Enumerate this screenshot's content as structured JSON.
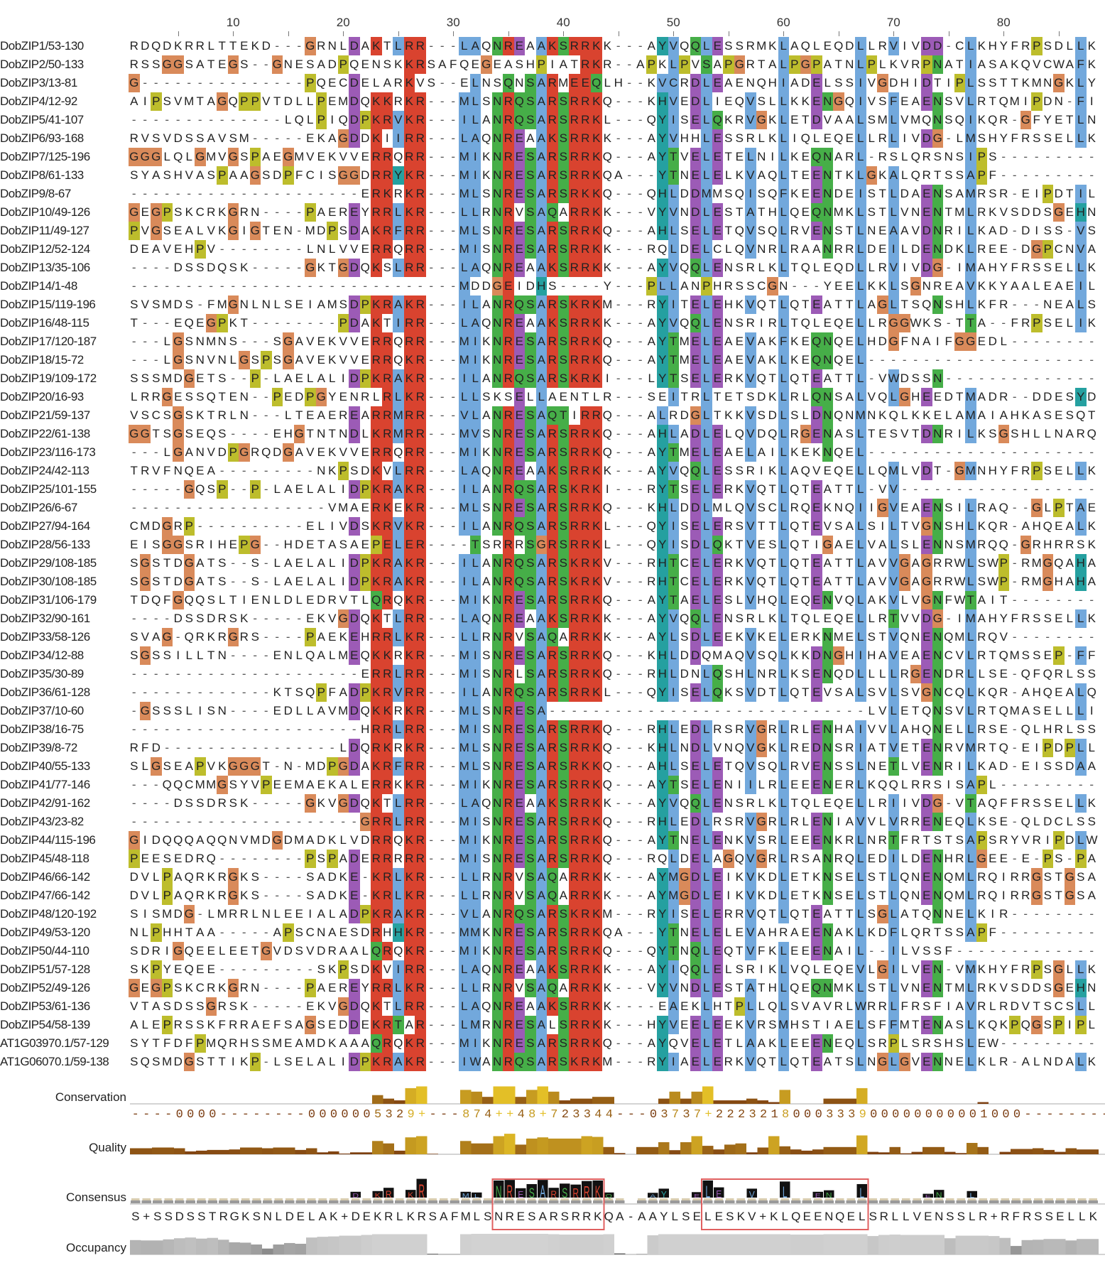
{
  "ruler": {
    "labels": [
      10,
      20,
      30,
      40,
      50,
      60,
      70,
      80
    ],
    "columns": 88
  },
  "colors": {
    "blue": "#72a8dc",
    "red": "#d9432f",
    "green": "#46ae48",
    "magenta": "#9c5bb6",
    "orange": "#d98a5a",
    "yellow": "#bdbd2c",
    "cyan": "#25a0a0",
    "pink": "#e08080",
    "low_score": "#7a3b10",
    "high_score": "#f2d22a",
    "highlight_box": "#e06060"
  },
  "alignment": {
    "sequences": [
      {
        "name": "DobZIP1/53-130",
        "residues": "RDQDKRRLTTEKD---GRNLDAKTLRR---LAQNREAAKSRRKK---AYVQQLESSRMKLAQLEQDLLRVIVDD-CLKHYFRPSDLLK"
      },
      {
        "name": "DobZIP2/50-133",
        "residues": "RSSGGSATEGS--GNESADPQENSKKRSAFQEGEASHPIATRKR--APKLPVSAPGRTALPGPATNLPLKVRPNATIASAKQVCWAFK"
      },
      {
        "name": "DobZIP3/13-81",
        "residues": "G---------------PQECDELARKVS--ELNSQNSARMEEQLH--KVCRDLEAENQHIADELSSIVGDHIDTIPLSSTTKMNGKLY"
      },
      {
        "name": "DobZIP4/12-92",
        "residues": "AIPSVMTAGQPPVTDLLPEMDQKKRKR---MLSNRQSARSRRKQ---KHVEDLIEQVSLLKKENGQIVSFEAENSVLRTQMIPDN-FI"
      },
      {
        "name": "DobZIP5/41-107",
        "residues": "--------------LQLPIQDPKRVKR---ILANRQSARSRRKL---QYISELQKRVGKLETDVAALSMLVMQNSQIKQR-GFYETLN"
      },
      {
        "name": "DobZIP6/93-168",
        "residues": "RVSVDSSAVSM-----EKAGDDKIIRR---LAQNREAAKSRRKK---AYVHHLESSRLKLIQLEQELLRLIVDG-LMSHYFRSSELLK"
      },
      {
        "name": "DobZIP7/125-196",
        "residues": "GGGLQLGMVGSPAEGMVEKVVERRQRR---MIKNRESARSRRKQ---AYTVELETELNILKEQNARL-RSLQRSNSIPS---------"
      },
      {
        "name": "DobZIP8/61-133",
        "residues": "SYASHVASPAAGSDPFCISGGDRRYKR---MIKNRESARSRRKQA---YTNELELKVAQLTEENTKLGKALQRTSSAPF---------"
      },
      {
        "name": "DobZIP9/8-67",
        "residues": "---------------------ERKRKR---MLSNRESARSRKKQ---QHLDDMMSQISQFKEENDEISTLDAENSAMRSR-EIPDTIL"
      },
      {
        "name": "DobZIP10/49-126",
        "residues": "GEGPSKCRKGRN----PAEREYRRLKR---LLRNRVSAQARRKK---VYVNDLESTATHLQEQNMKLSTLVNENTMLRKVSDDSGEHN"
      },
      {
        "name": "DobZIP11/49-127",
        "residues": "PVGSEALVKGIGTEN-MDPSDAKRFRR---MLSNRESARSRRKQ---AHLSELETQVSQLRVENSTLNEAAVDNRILKAD-DISS-VS"
      },
      {
        "name": "DobZIP12/52-124",
        "residues": "DEAVEHPV--------LNLVVERRQRR---MISNRESARSRRKK---RQLDELCLQVNRLRAANRRLDEILDENDKLREE-DGPCNVA"
      },
      {
        "name": "DobZIP13/35-106",
        "residues": "----DSSDQSK-----GKTGDQKSLRR---LAQNREAAKSRRKK---AYVQQLENSRLKLTQLEQDLLRVIVDG-IMAHYFRSSELLK"
      },
      {
        "name": "DobZIP14/1-48",
        "residues": "------------------------------MDDGEIDHS----Y---PLLANPHRSSCGN---YEELKKLSGNREAVKKYAALEAEIL"
      },
      {
        "name": "DobZIP15/119-196",
        "residues": "SVSMDS-FMGNLNLSEIAMSDPKRAKR---ILANRQSARSKRKM---RYITELEHKVQTLQTEATTLAGLTSQNSHLKFR---NEALS"
      },
      {
        "name": "DobZIP16/48-115",
        "residues": "T---EQEGPKT--------PDAKTIRR---LAQNREAAKSRRKK---AYVQQLENSRIRLTQLEQELLRGGWKS-TTA--FRPSELIK"
      },
      {
        "name": "DobZIP17/120-187",
        "residues": "---LGSNMNS---SGAVEKVVERRQRR---MIKNRESARSRRKQ---AYTMELEAEVAKFKEQNQELHDGFNAIFGGEDL--------"
      },
      {
        "name": "DobZIP18/15-72",
        "residues": "---LGSNVNLGSPSGAVEKVVERRQKR---MIKNRESARSRRKQ---AYTMELEAEVAKLKEQNQEL---------------------"
      },
      {
        "name": "DobZIP19/109-172",
        "residues": "SSSMDGETS--P-LAELALIDPKRAKR---ILANRQSARSKRKI---LYTSELERKVQTLQTEATTL-VWDSSN--------------"
      },
      {
        "name": "DobZIP20/16-93",
        "residues": "LRRGESSQTEN--PEDPGYENRLRLKR---LLSKSELLAENTLR---SEITRLTETSDKLRLQNSALVQLGHEEDTMADR--DDESYD"
      },
      {
        "name": "DobZIP21/59-137",
        "residues": "VSCSGSKTRLN---LTEAEREARRMRR---VLANRESAQTIRRQ---ALRDGLTKKVSDLSLDNQNMNKQLKKELAMAIAHKASESQT"
      },
      {
        "name": "DobZIP22/61-138",
        "residues": "GGTSGSEQS----EHGTNTNDLKRMRR---MVSNRESARSRRKQ---AHLADLELQVDQLRGENASLTESVTDNRILKSGSHLLNARQ"
      },
      {
        "name": "DobZIP23/116-173",
        "residues": "---LGANVDPGRQDGAVEKVVERRQRR---MIKNRESARSRRKQ---AYTMELEAELAILKEKNQEL---------------------"
      },
      {
        "name": "DobZIP24/42-113",
        "residues": "TRVFNQEA---------NKPSDKVLRR---LAQNREAAKSRRKK---AYVQQLESSRIKLAQVEQELLQMLVDT-GMNHYFRPSELLK"
      },
      {
        "name": "DobZIP25/101-155",
        "residues": "-----GQSP--P-LAELALIDPKRAKR---ILANRQSARSKRKI---RYTSELERKVQTLQTEATTL-VV------------------"
      },
      {
        "name": "DobZIP26/6-67",
        "residues": "------------------VMAERKEKR---MLSNRESARSRRKQ---KHLDDLMLQVSCLRQEKNQIIGVEAENSILRAQ--GLPTAE"
      },
      {
        "name": "DobZIP27/94-164",
        "residues": "CMDGRP----------ELIVDSKRVKR---ILANRQSARSRRKL---QYISELERSVTTLQTEVSALSILTVGNSHLKQR-AHQEALK"
      },
      {
        "name": "DobZIP28/56-133",
        "residues": "EISGGSRIHEPG--HDETASAEPELER----TSRRRSGRSRRKL---QYISDLQKTVESLQTIGAELVALSLENNSMRQQ-GRHRRSK"
      },
      {
        "name": "DobZIP29/108-185",
        "residues": "SGSTDGATS--S-LAELALIDPKRAKR---ILANRQSARSKRKV---RHTCELERKVQTLQTEATTLAVVGAGRRWLSWP-RMGQAHA"
      },
      {
        "name": "DobZIP30/108-185",
        "residues": "SGSTDGATS--S-LAELALIDPKRAKR---ILANRQSARSKRKV---RHTCELERKVQTLQTEATTLAVVGAGRRWLSWP-RMGHAHA"
      },
      {
        "name": "DobZIP31/106-179",
        "residues": "TDQFGQQSLTIENLDLEDRVTLQRQKR---MIKNRESARSRRKQ---AYTAELESLVHQLEQENVQLAKVLVGNFWTAIT--------"
      },
      {
        "name": "DobZIP32/90-161",
        "residues": "----DSSDRSK-----EKVGDQKTLRR---LAQNREAAKSRRKK---AYVQQLENSRLKLTQLEQELLRTVVDG-IMAHYFRSSELLK"
      },
      {
        "name": "DobZIP33/58-126",
        "residues": "SVAG-QRKRGRS----PAEKEHRRLKR---LLRNRVSAQARRKK---AYLSDLEEKVKELERKNMELSTVQNENQMLRQV--------"
      },
      {
        "name": "DobZIP34/12-88",
        "residues": "SGSSILLTN----ENLQALMEQKKRKR---MISNRESARSRRKQ---KHLDDQMAQVSQLKKDNGHIHAVEAENCVLRTQMSSEP-FF"
      },
      {
        "name": "DobZIP35/30-89",
        "residues": "---------------------ERRLRR---MISNRLSARSRRKQ---RHLDNLQSHLNRLKSENQDLLLLRGENDRLLSE-QFQRLSS"
      },
      {
        "name": "DobZIP36/61-128",
        "residues": "-------------KTSQPFADPKRVRR---ILANRQSARSRRKL---QYISELQKSVDTLQTEVSALSVLSVGNCQLKQR-AHQEALQ"
      },
      {
        "name": "DobZIP37/10-60",
        "residues": "-GSSSLISN----EDLLAVMDQKKRKR---MLSNRESA-----------------------------LVLETQNSVLRTQMASELLLI"
      },
      {
        "name": "DobZIP38/16-75",
        "residues": "---------------------HRRLRR---MISNRESARSRRKQ---RHLEDLRSRVGRLRLENHAIVVLAHQNELLRSE-QLHRLSS"
      },
      {
        "name": "DobZIP39/8-72",
        "residues": "RFD----------------LDQRKRKR---MLSNRESARSRRKQ---KHLNDLVNQVGKLREDNSRIATVETENRVMRTQ-EIPDPLL"
      },
      {
        "name": "DobZIP40/55-133",
        "residues": "SLGSEAPVKGGGT-N-MDPGDAKRFRR---MLSNRESARSRKKQ---AHLSELETQVSQLRVENSSLNETLVENRILKAD-EISSDAA"
      },
      {
        "name": "DobZIP41/77-146",
        "residues": "---QQCMMGSYVPEEMAEKALERRKKR---MIKNRESARSRRKQ---AYTSELENIILRLEEENERLKQQLRRSISAPL---------"
      },
      {
        "name": "DobZIP42/91-162",
        "residues": "----DSSDRSK-----GKVGDQKTLRR---LAQNREAAKSRRKK---AYVQQLENSRLKLTQLEQELLRIIVDG-VTAQFFRSSELLK"
      },
      {
        "name": "DobZIP43/23-82",
        "residues": "---------------------GRRLRR---MISNRESARSRRKQ---RHLEDLRSRVGRLRLENIAVVLVRRENEQLKSE-QLDCLSS"
      },
      {
        "name": "DobZIP44/115-196",
        "residues": "GIDQQQAQQNVMDGDMADKLVDRRQKR---MIKNRESARSRRKQ---AYTNELENKVSRLEEENKRLNRTFRTSTSAPSRYVRIPDLW"
      },
      {
        "name": "DobZIP45/48-118",
        "residues": "PEESEDRQ--------PSPADERRRRR---MISNRESARSRRKQ---RQLDELAGQVGRLRSANRQLEDILDENHRLGEE-E-PS-PA"
      },
      {
        "name": "DobZIP46/66-142",
        "residues": "DVLPAQRKRGKS----SADKE-KRLKR---LLRNRVSAQARRKK---AYMGDLEIKVKDLETKNSELSTLQNENQMLRQIRRGSTGSA"
      },
      {
        "name": "DobZIP47/66-142",
        "residues": "DVLPAQRKRGKS----SADKE-KRLKR---LLRNRVSAQARRKK---AYMGDLEIKVKDLETKNSELSTLQNENQMLRQIRRGSTGSA"
      },
      {
        "name": "DobZIP48/120-192",
        "residues": "SISMDG-LMRRLNLEEIALADPKRAKR---VLANRQSARSKRKM---RYISELERRVQTLQTEATTLSGLATQNNELKIR--------"
      },
      {
        "name": "DobZIP49/53-120",
        "residues": "NLPHHTAA-----APSCNAESDRHHKR---MMKNRESARSRRKQA---YTNELELEVAHRAEENAKLKDFLQRTSSAPF---------"
      },
      {
        "name": "DobZIP50/44-110",
        "residues": "SDRIGQEELEETGVDSVDRAALQRQKR---MIKNRESARSRRKQ---QYTNQLEQTVFKLEEENAIL--ILVSSF-------------"
      },
      {
        "name": "DobZIP51/57-128",
        "residues": "SKPYEQEE---------SKPSDKVIRR---LAQNREAAKSRRKK---AYIQQLELSRIKLVQLEQEVLGILVEN-VMKHYFRPSGLLK"
      },
      {
        "name": "DobZIP52/49-126",
        "residues": "GEGPSKCRKGRN----PAEREYRRLKR---LLRNRVSAQARRKK---VYVNDLESTATHLQEQNMKLSTLVNENTMLRKVSDDSGEHN"
      },
      {
        "name": "DobZIP53/61-136",
        "residues": "VTASDSSGRSK-----EKVGDQKTLRR---LAQNREAAKSRRKK----EAEKLHTPLLQLSVAVRLWRRLFRSFIAVRLRDVTSCSLL"
      },
      {
        "name": "DobZIP54/58-139",
        "residues": "ALEPRSSKFRRAEFSAGSEDDEKRTAR---LMRNRESALSRRKK---HYVEELEEKVRSMHSTIAELSFFMTENASLKQKPQGSPIPL"
      },
      {
        "name": "AT1G03970.1/57-129",
        "residues": "SYTFDFPMQRHSSMEAMDKAAAQRQKR---MIKNRESARSRRKQ---AYQVELETLAAKLEEENEQLSRPLSRSHSLEW---------"
      },
      {
        "name": "AT1G06070.1/59-138",
        "residues": "SQSMDGSTTIKP-LSELALIDPKRAKR---IWANRQSARSKRKM---RYIAELERKVQTLQTEATSLNGLGVENNELKLR-ALNDALK"
      }
    ]
  },
  "annotations": {
    "conservation": {
      "label": "Conservation",
      "scores": "----0000--------0000005329+---874++48+723344---03737+2223218000333900000000001000--------"
    },
    "quality": {
      "label": "Quality",
      "values": [
        0.25,
        0.25,
        0.28,
        0.28,
        0.25,
        0.12,
        0.15,
        0.18,
        0.18,
        0.2,
        0.28,
        0.28,
        0.25,
        0.28,
        0.28,
        0.18,
        0.25,
        0.08,
        0.12,
        0.03,
        0.08,
        0.08,
        0.55,
        0.45,
        0.15,
        0.7,
        0.75,
        0.02,
        0,
        0,
        0.55,
        0.45,
        0.45,
        0.75,
        0.85,
        0.4,
        0.65,
        0.7,
        0.65,
        0.65,
        0.65,
        0.75,
        0.72,
        0.3,
        0.05,
        0,
        0.3,
        0.3,
        0.5,
        0.17,
        0.5,
        0.75,
        0.35,
        0.2,
        0.4,
        0.45,
        0.08,
        0.28,
        0.75,
        0.33,
        0.2,
        0.15,
        0.2,
        0.3,
        0.3,
        0.3,
        0.78,
        0.1,
        0.08,
        0.3,
        0.04,
        0.1,
        0.3,
        0.3,
        0.1,
        0.05,
        0.47,
        0.3,
        0,
        0.1,
        0.22,
        0.22,
        0.25,
        0.18,
        0.1,
        0.25,
        0.2,
        0.2
      ]
    },
    "consensus": {
      "label": "Consensus",
      "sequence": "S+SSDSSTRGKSNLDELAK+DEKRLKRSAFMLSNRESARSRRKQA-AAYLSELESKV+KLQEENQELSRLLVENSSLR+RFRSSELLK",
      "highlight_columns": [
        [
          34,
          43
        ],
        [
          53,
          67
        ]
      ]
    },
    "occupancy": {
      "label": "Occupancy"
    }
  }
}
